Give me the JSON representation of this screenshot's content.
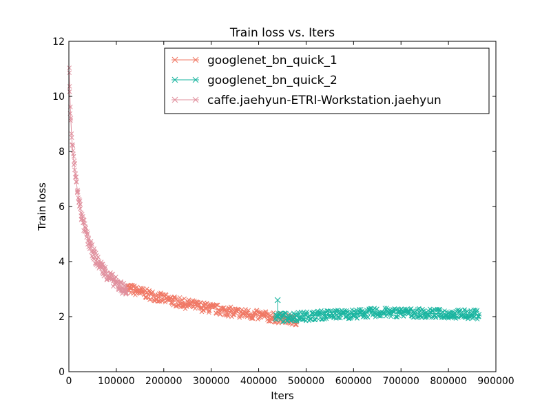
{
  "chart_data": {
    "type": "line",
    "title": "Train loss  vs. Iters",
    "xlabel": "Iters",
    "ylabel": "Train loss",
    "xlim": [
      0,
      900000
    ],
    "ylim": [
      0,
      12
    ],
    "xticks": [
      0,
      100000,
      200000,
      300000,
      400000,
      500000,
      600000,
      700000,
      800000,
      900000
    ],
    "xtick_labels": [
      "0",
      "100000",
      "200000",
      "300000",
      "400000",
      "500000",
      "600000",
      "700000",
      "800000",
      "900000"
    ],
    "yticks": [
      0,
      2,
      4,
      6,
      8,
      10,
      12
    ],
    "ytick_labels": [
      "0",
      "2",
      "4",
      "6",
      "8",
      "10",
      "12"
    ],
    "grid": false,
    "legend_position": "top-right",
    "marker": "x",
    "series": [
      {
        "name": "googlenet_bn_quick_1",
        "color": "#f07865",
        "x": [
          120000,
          150000,
          200000,
          250000,
          300000,
          350000,
          400000,
          440000,
          480000
        ],
        "y": [
          3.05,
          2.9,
          2.65,
          2.45,
          2.3,
          2.15,
          2.05,
          1.95,
          1.85
        ],
        "spread": 0.18
      },
      {
        "name": "googlenet_bn_quick_2",
        "color": "#1ab5a0",
        "x": [
          435000,
          450000,
          500000,
          550000,
          600000,
          650000,
          700000,
          750000,
          800000,
          865000
        ],
        "y": [
          2.0,
          1.98,
          2.02,
          2.08,
          2.1,
          2.15,
          2.15,
          2.12,
          2.1,
          2.08
        ],
        "spread": 0.17,
        "outlier": {
          "x": 440000,
          "y": 2.6
        }
      },
      {
        "name": "caffe.jaehyun-ETRI-Workstation.jaehyun",
        "color": "#e0909e",
        "x": [
          500,
          3000,
          6000,
          10000,
          15000,
          20000,
          30000,
          40000,
          50000,
          60000,
          80000,
          100000,
          122000
        ],
        "y": [
          10.9,
          9.6,
          8.5,
          7.7,
          7.0,
          6.3,
          5.4,
          4.8,
          4.35,
          4.0,
          3.55,
          3.2,
          2.95
        ],
        "spread": 0.22
      }
    ]
  }
}
